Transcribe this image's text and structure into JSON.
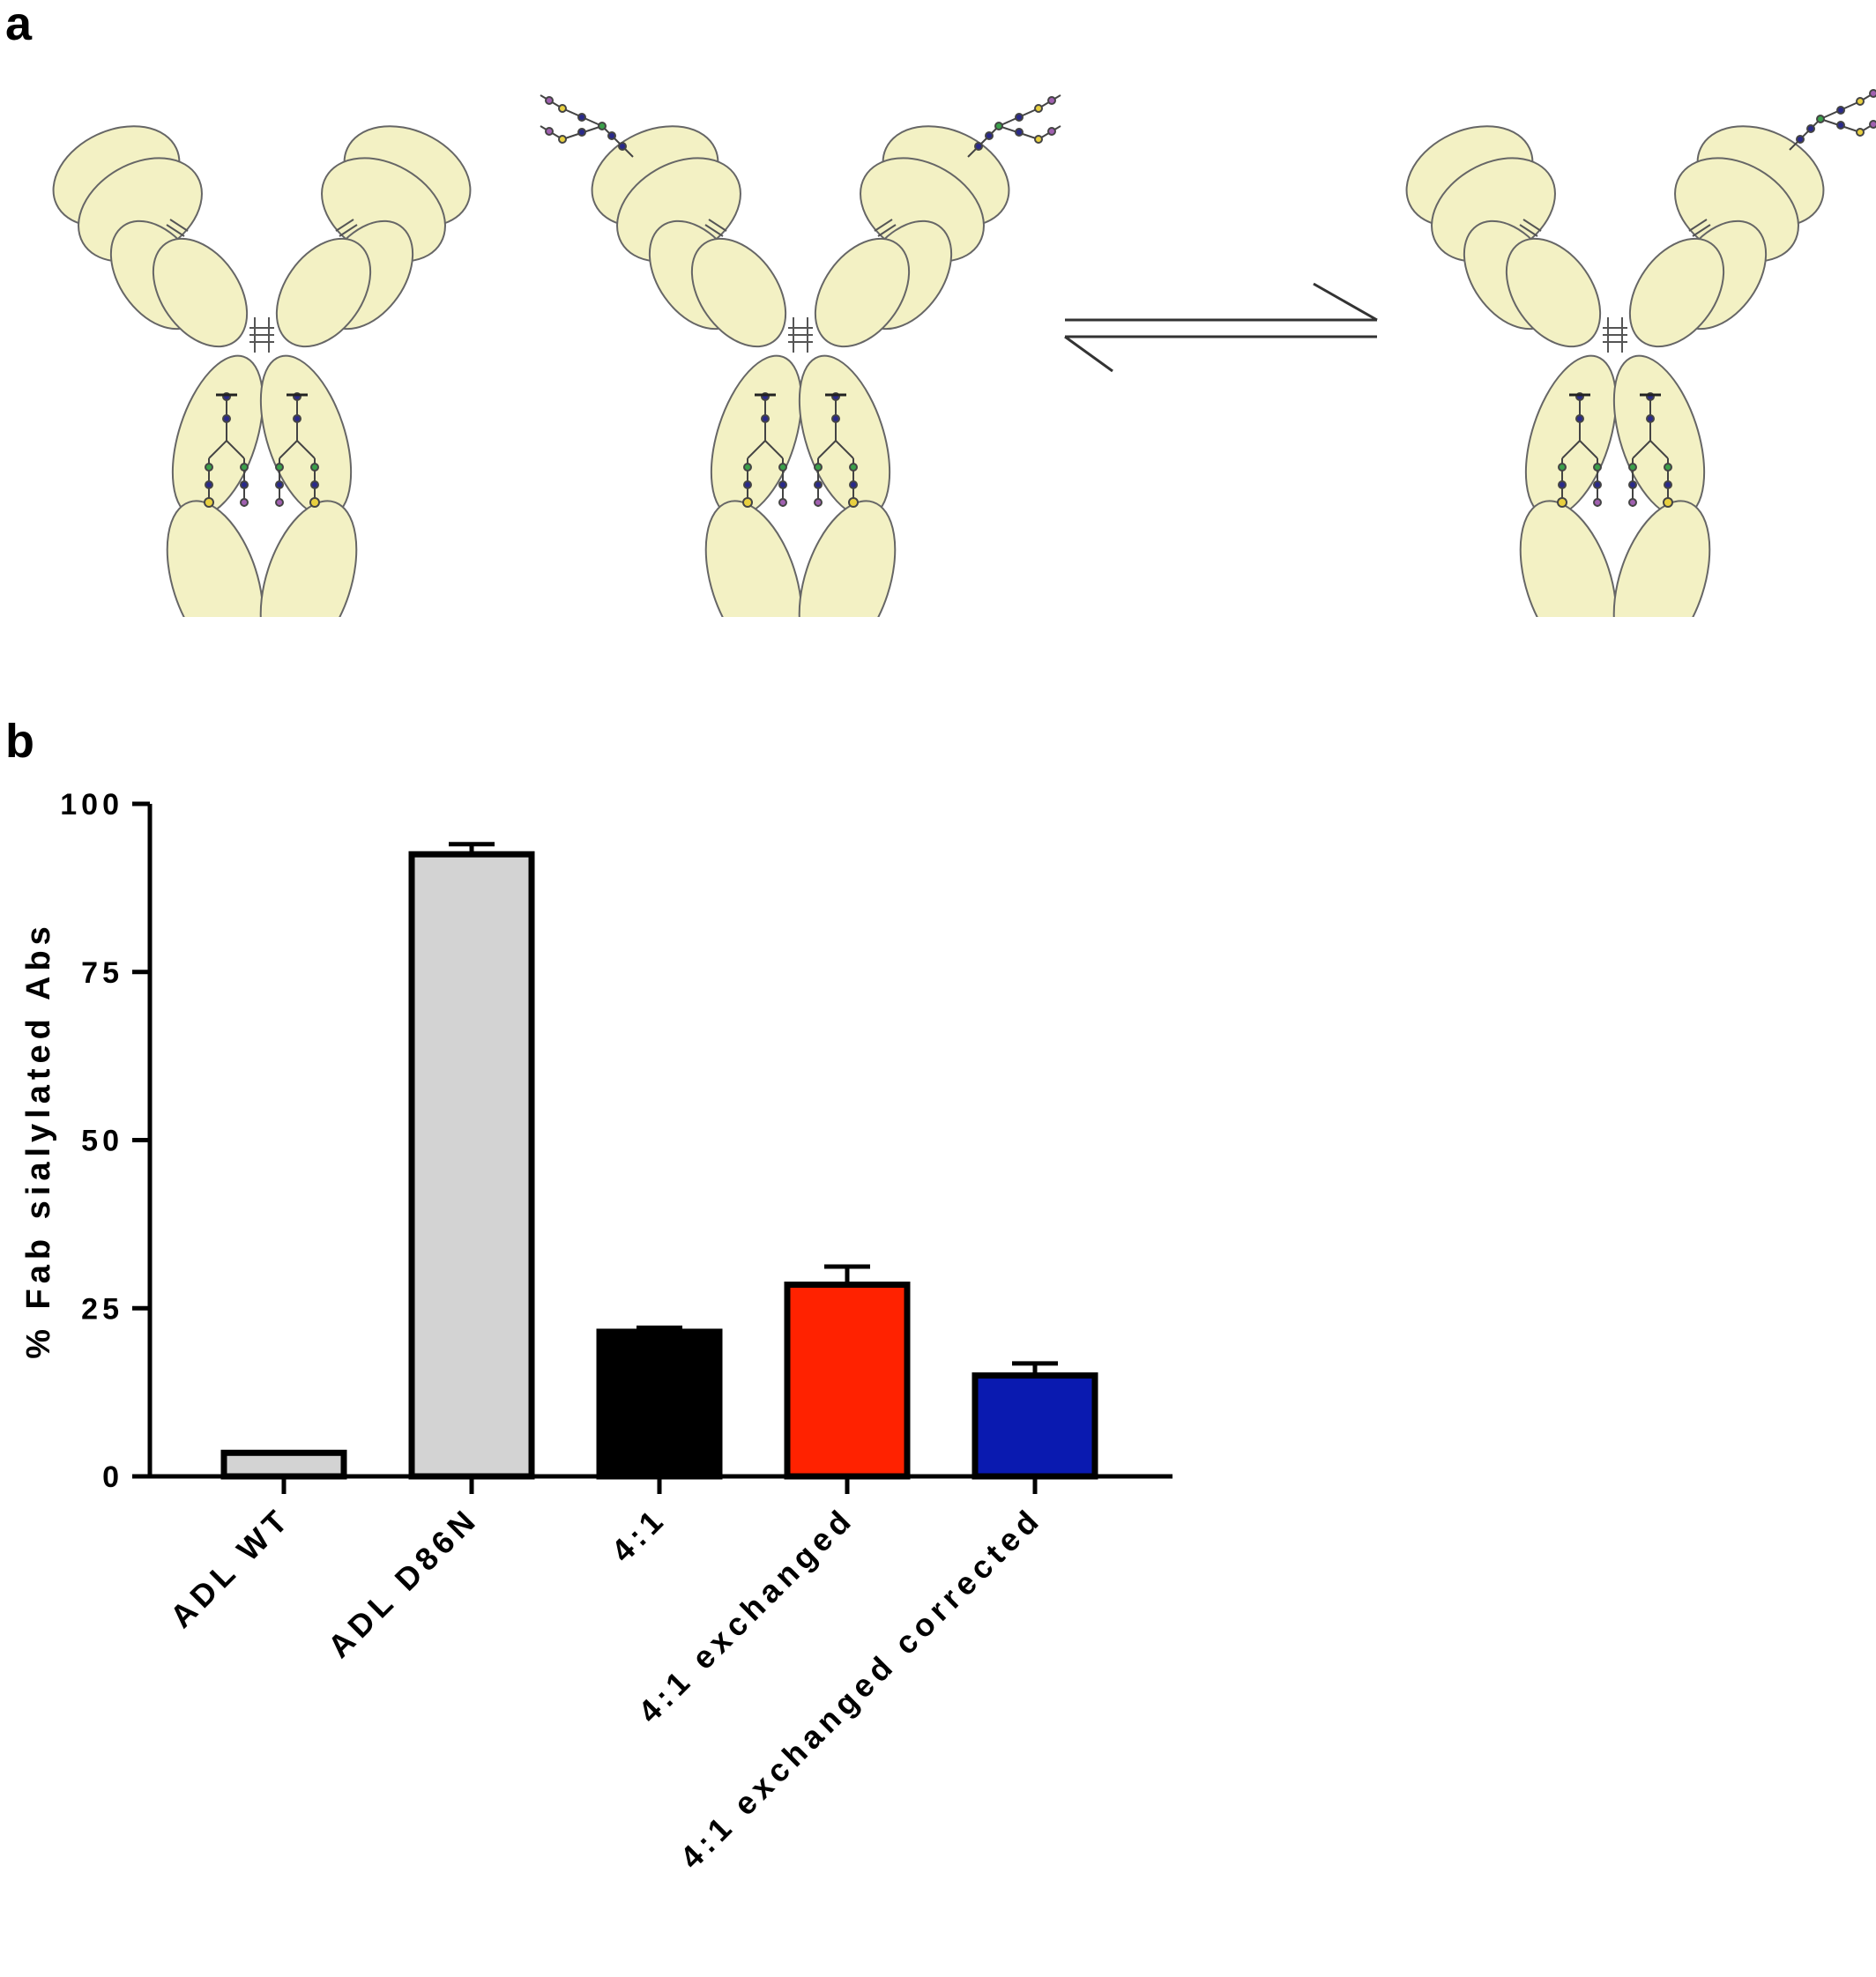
{
  "panels": {
    "a_label": "a",
    "b_label": "b"
  },
  "diagram": {
    "antibodies": [
      {
        "name": "antibody-no-fab-glycan",
        "fab_glycans": 0
      },
      {
        "name": "antibody-two-fab-glycans",
        "fab_glycans": 2
      },
      {
        "name": "antibody-one-fab-glycan",
        "fab_glycans": 1
      }
    ],
    "domain_color": "#f3f1c4",
    "arrow": "equilibrium"
  },
  "chart_data": {
    "type": "bar",
    "categories": [
      "ADL WT",
      "ADL D86N",
      "4:1",
      "4:1 exchanged",
      "4:1 exchanged corrected"
    ],
    "values": [
      3.5,
      92.5,
      21.5,
      28.5,
      15.0
    ],
    "errors": [
      0,
      1.5,
      0.6,
      2.7,
      1.8
    ],
    "colors": [
      "#d3d3d3",
      "#d3d3d3",
      "#000000",
      "#ff2200",
      "#0a1ab0"
    ],
    "ylabel": "% Fab sialylated Abs",
    "xlabel": "",
    "ylim": [
      0,
      100
    ],
    "yticks": [
      0,
      25,
      50,
      75,
      100
    ],
    "ytick_labels": [
      "0",
      "25",
      "50",
      "75",
      "100"
    ]
  }
}
